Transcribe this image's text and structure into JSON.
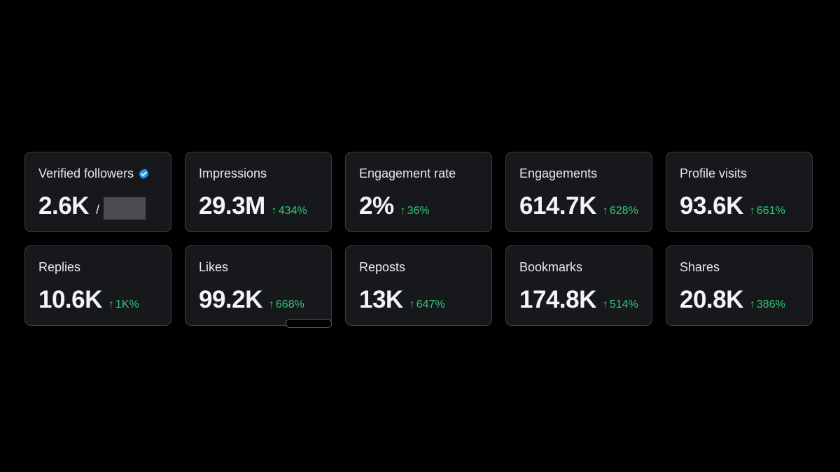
{
  "metrics": [
    {
      "title": "Verified followers",
      "value": "2.6K",
      "separator": "/",
      "verified": true
    },
    {
      "title": "Impressions",
      "value": "29.3M",
      "arrow": "↑",
      "change": "434%"
    },
    {
      "title": "Engagement rate",
      "value": "2%",
      "arrow": "↑",
      "change": "36%"
    },
    {
      "title": "Engagements",
      "value": "614.7K",
      "arrow": "↑",
      "change": "628%"
    },
    {
      "title": "Profile visits",
      "value": "93.6K",
      "arrow": "↑",
      "change": "661%"
    },
    {
      "title": "Replies",
      "value": "10.6K",
      "arrow": "↑",
      "change": "1K%"
    },
    {
      "title": "Likes",
      "value": "99.2K",
      "arrow": "↑",
      "change": "668%"
    },
    {
      "title": "Reposts",
      "value": "13K",
      "arrow": "↑",
      "change": "647%"
    },
    {
      "title": "Bookmarks",
      "value": "174.8K",
      "arrow": "↑",
      "change": "514%"
    },
    {
      "title": "Shares",
      "value": "20.8K",
      "arrow": "↑",
      "change": "386%"
    }
  ],
  "colors": {
    "background": "#000000",
    "card": "#16181c",
    "card_border": "#3a3d42",
    "positive": "#2fc97a",
    "verified": "#1d9bf0"
  },
  "icons": {
    "verified": "verified-badge-icon",
    "change": "up-arrow-icon"
  }
}
